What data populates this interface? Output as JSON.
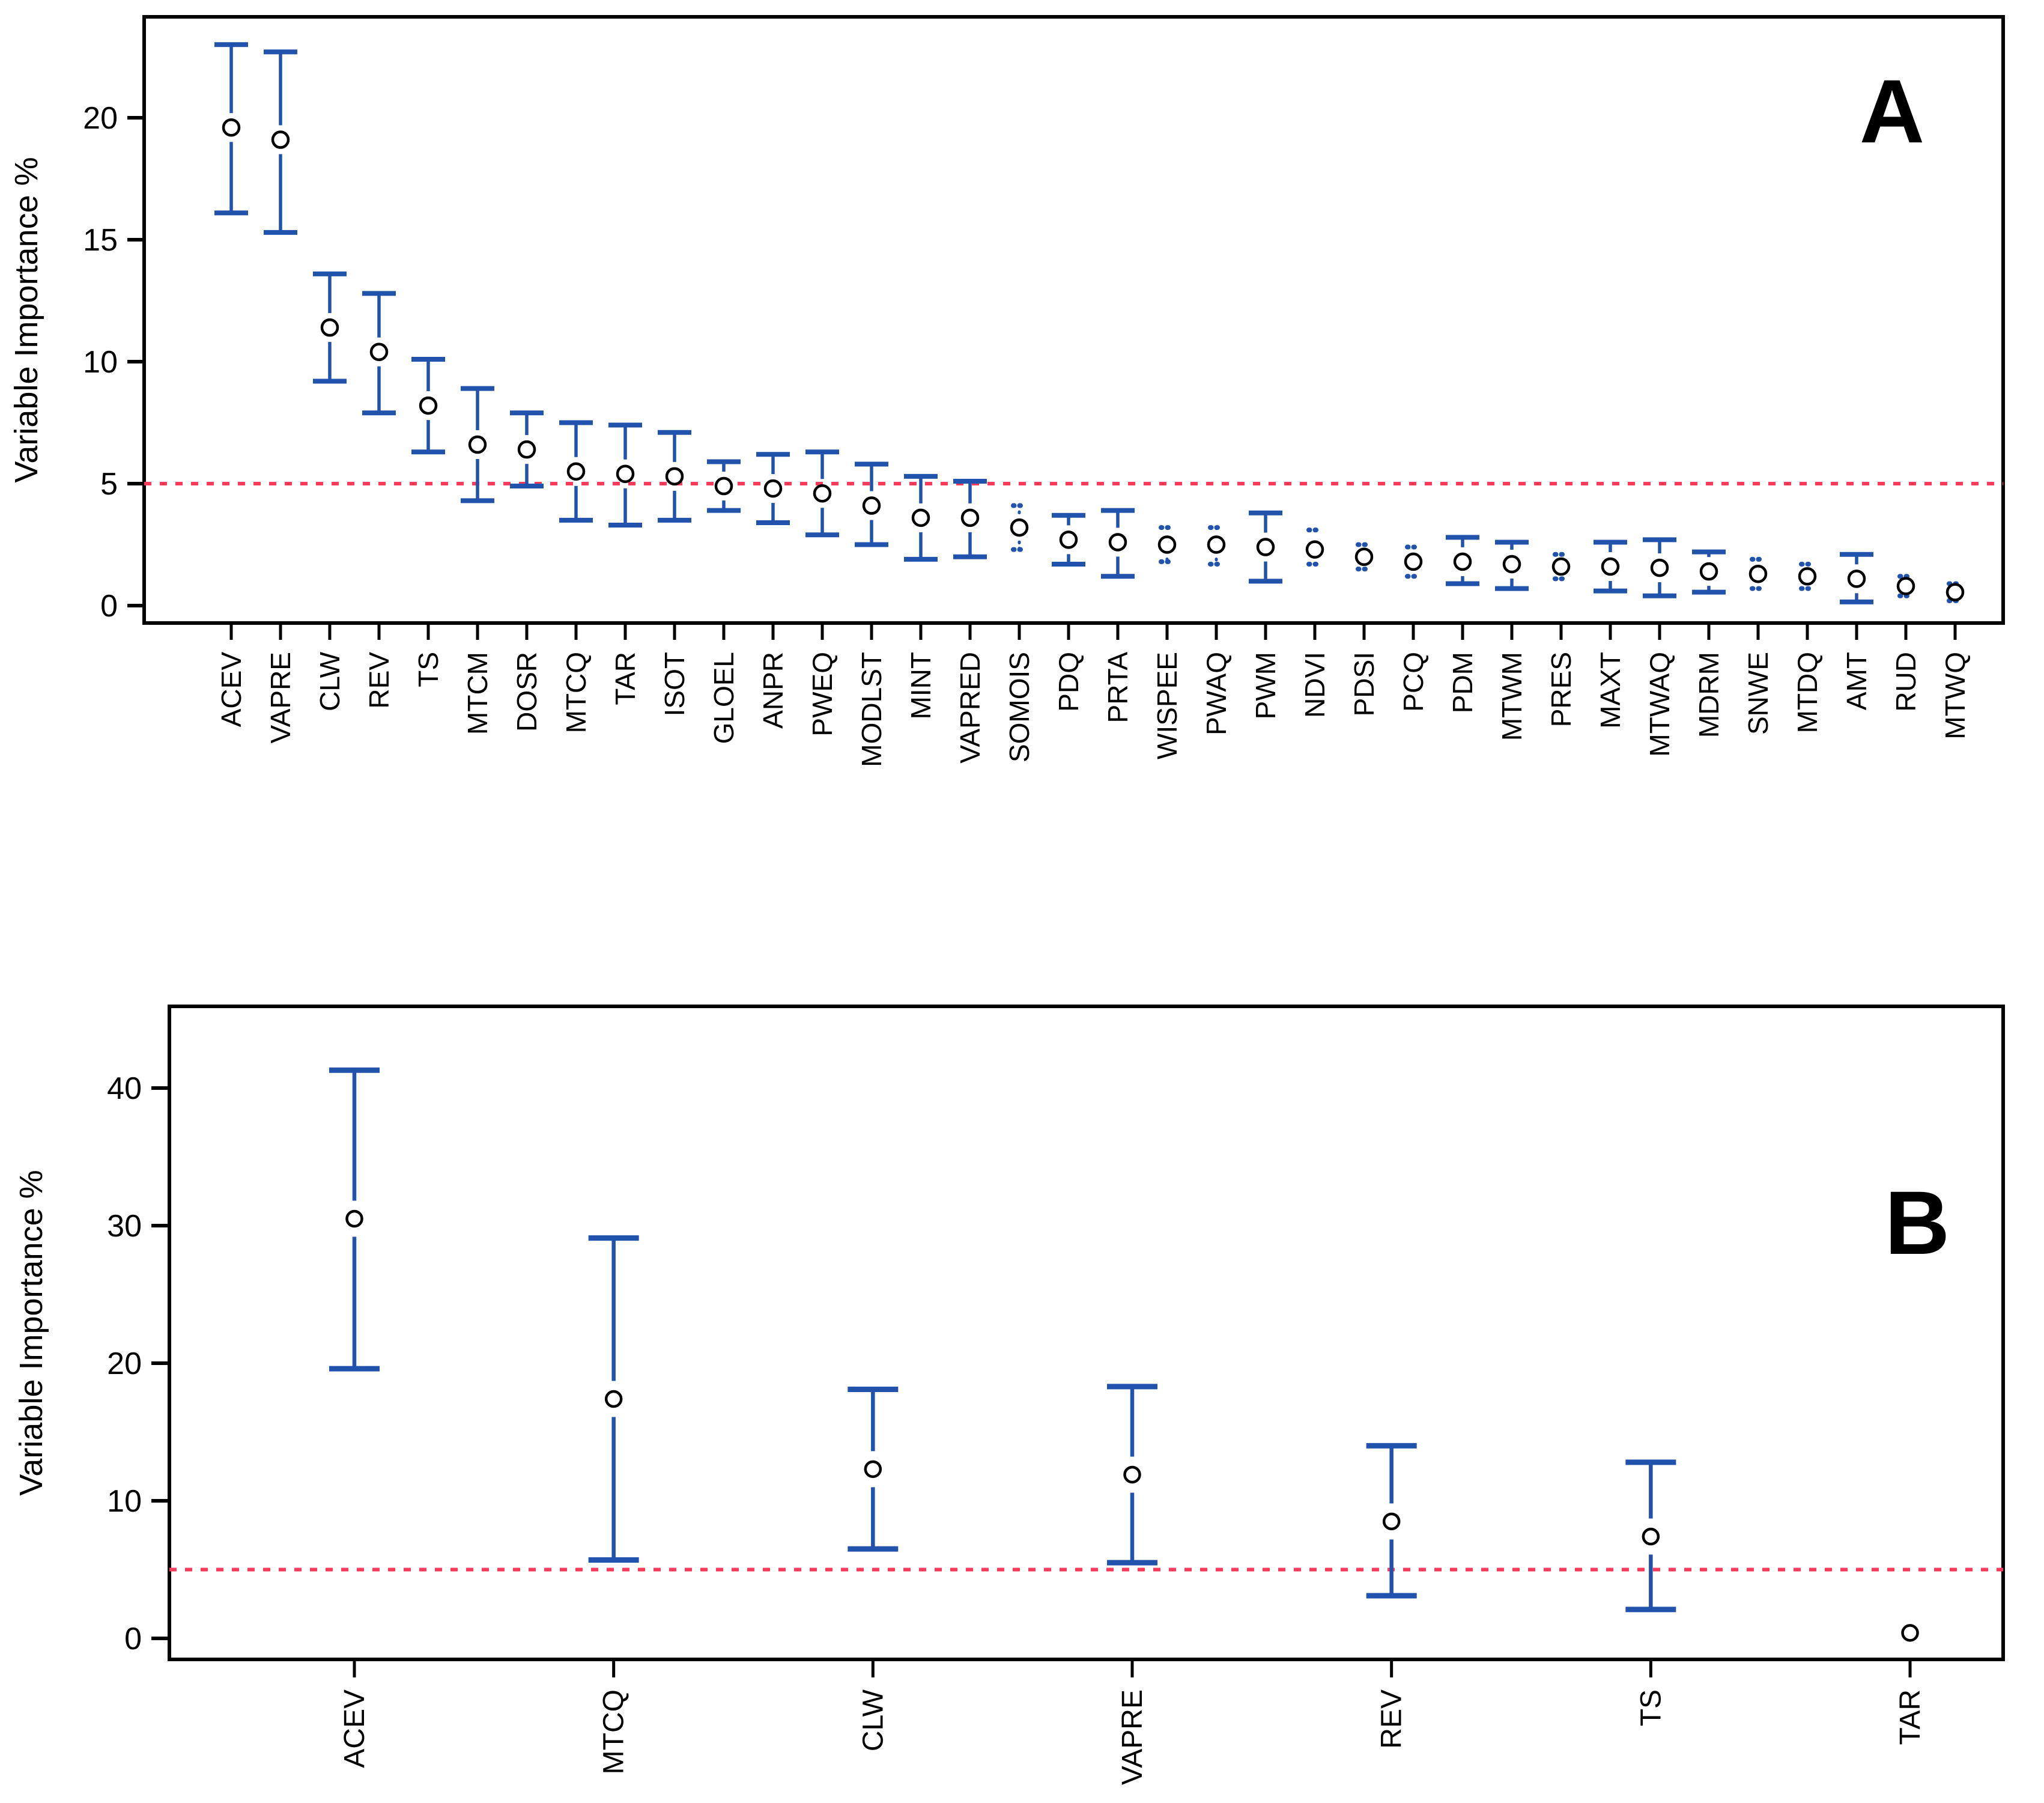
{
  "figure": {
    "description": "Two-panel errorbar figure of variable importance",
    "shared_ylabel": "Variable Importance %"
  },
  "colors": {
    "whisker_blue": "#2152ac",
    "reference_red": "#fb3b5c",
    "point_fill": "#ffffff",
    "point_stroke": "#000000",
    "axis_black": "#000000"
  },
  "chart_data": [
    {
      "panel_label": "A",
      "type": "errorbar",
      "title": "",
      "xlabel": "",
      "ylabel": "Variable Importance %",
      "yticks": [
        0,
        5,
        10,
        15,
        20
      ],
      "ylim": [
        -0.7,
        24.1
      ],
      "reference_line": 5,
      "grid": false,
      "legend_position": "none",
      "categories": [
        "ACEV",
        "VAPRE",
        "CLW",
        "REV",
        "TS",
        "MTCM",
        "DOSR",
        "MTCQ",
        "TAR",
        "ISOT",
        "GLOEL",
        "ANPR",
        "PWEQ",
        "MODLST",
        "MINT",
        "VAPRED",
        "SOMOIS",
        "PDQ",
        "PRTA",
        "WISPEE",
        "PWAQ",
        "PWM",
        "NDVI",
        "PDSI",
        "PCQ",
        "PDM",
        "MTWM",
        "PRES",
        "MAXT",
        "MTWAQ",
        "MDRM",
        "SNWE",
        "MTDQ",
        "AMT",
        "RUD",
        "MTWQ"
      ],
      "values": [
        19.6,
        19.1,
        11.4,
        10.4,
        8.2,
        6.6,
        6.4,
        5.5,
        5.4,
        5.3,
        4.9,
        4.8,
        4.6,
        4.1,
        3.6,
        3.6,
        3.2,
        2.7,
        2.6,
        2.5,
        2.5,
        2.4,
        2.3,
        2.0,
        1.8,
        1.8,
        1.7,
        1.6,
        1.6,
        1.55,
        1.4,
        1.3,
        1.2,
        1.1,
        0.8,
        0.55
      ],
      "lower": [
        16.1,
        15.3,
        9.2,
        7.9,
        6.3,
        4.3,
        4.9,
        3.5,
        3.3,
        3.5,
        3.9,
        3.4,
        2.9,
        2.5,
        1.9,
        2.0,
        2.3,
        1.7,
        1.2,
        1.8,
        1.7,
        1.0,
        1.7,
        1.5,
        1.2,
        0.9,
        0.7,
        1.1,
        0.6,
        0.4,
        0.55,
        0.7,
        0.7,
        0.15,
        0.4,
        0.2
      ],
      "upper": [
        23.0,
        22.7,
        13.6,
        12.8,
        10.1,
        8.9,
        7.9,
        7.5,
        7.4,
        7.1,
        5.9,
        6.2,
        6.3,
        5.8,
        5.3,
        5.1,
        4.1,
        3.7,
        3.9,
        3.2,
        3.2,
        3.8,
        3.1,
        2.5,
        2.4,
        2.8,
        2.6,
        2.1,
        2.6,
        2.7,
        2.2,
        1.9,
        1.7,
        2.1,
        1.2,
        0.9
      ],
      "whisker_styles": [
        "solid",
        "solid",
        "solid",
        "solid",
        "solid",
        "solid",
        "solid",
        "solid",
        "solid",
        "solid",
        "solid",
        "solid",
        "solid",
        "solid",
        "solid",
        "solid",
        "dotted",
        "solid",
        "solid",
        "dotted",
        "dotted",
        "solid",
        "dotted",
        "dotted",
        "dotted",
        "solid",
        "solid",
        "dotted",
        "solid",
        "solid",
        "solid",
        "dotted",
        "dotted",
        "solid",
        "dotted",
        "dotted"
      ]
    },
    {
      "panel_label": "B",
      "type": "errorbar",
      "title": "",
      "xlabel": "",
      "ylabel": "Variable Importance %",
      "yticks": [
        0,
        10,
        20,
        30,
        40
      ],
      "ylim": [
        -1.5,
        45.9
      ],
      "reference_line": 5,
      "grid": false,
      "legend_position": "none",
      "categories": [
        "ACEV",
        "MTCQ",
        "CLW",
        "VAPRE",
        "REV",
        "TS",
        "TAR"
      ],
      "values": [
        30.5,
        17.4,
        12.3,
        11.9,
        8.5,
        7.4,
        0.4
      ],
      "lower": [
        19.6,
        5.7,
        6.5,
        5.5,
        3.1,
        2.1,
        null
      ],
      "upper": [
        41.3,
        29.1,
        18.1,
        18.3,
        14.0,
        12.8,
        null
      ],
      "whisker_styles": [
        "solid",
        "solid",
        "solid",
        "solid",
        "solid",
        "solid",
        "none"
      ]
    }
  ]
}
